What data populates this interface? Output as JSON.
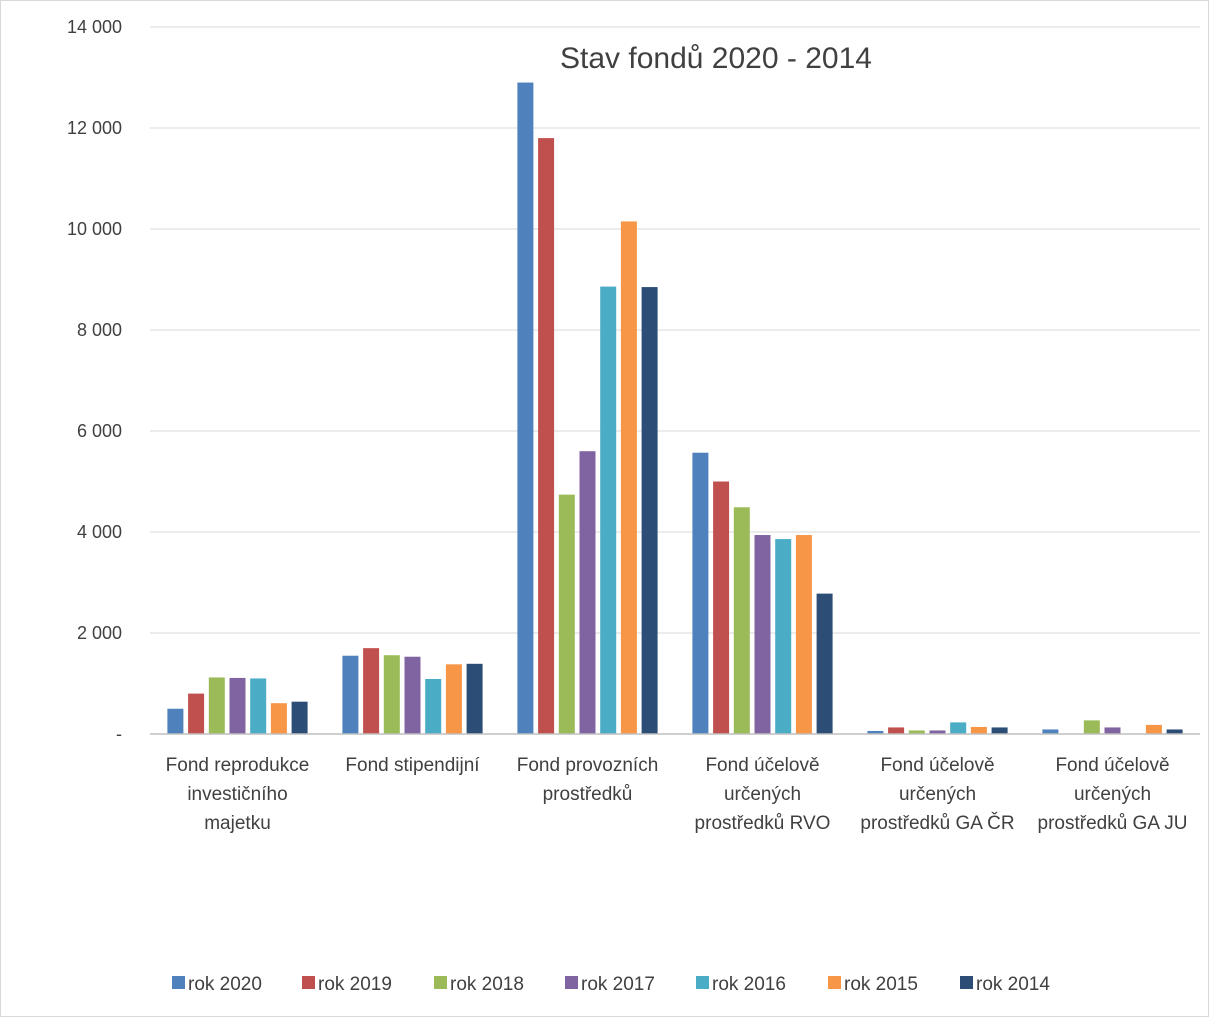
{
  "chart_data": {
    "type": "bar",
    "title": "Stav fondů 2020 - 2014",
    "xlabel": "",
    "ylabel": "",
    "ylim": [
      0,
      14000
    ],
    "y_ticks": [
      0,
      2000,
      4000,
      6000,
      8000,
      10000,
      12000,
      14000
    ],
    "y_tick_labels": [
      "-",
      "2 000",
      "4 000",
      "6 000",
      "8 000",
      "10 000",
      "12 000",
      "14 000"
    ],
    "grid": true,
    "legend_position": "bottom",
    "categories": [
      [
        "Fond reprodukce",
        "investičního",
        "majetku"
      ],
      [
        "Fond stipendijní"
      ],
      [
        "Fond provozních",
        "prostředků"
      ],
      [
        "Fond účelově",
        "určených",
        "prostředků RVO"
      ],
      [
        "Fond účelově",
        "určených",
        "prostředků GA ČR"
      ],
      [
        "Fond účelově",
        "určených",
        "prostředků GA JU"
      ]
    ],
    "series": [
      {
        "name": "rok 2020",
        "color": "#4f81bd",
        "values": [
          500,
          1550,
          12900,
          5570,
          60,
          90
        ]
      },
      {
        "name": "rok 2019",
        "color": "#c0504d",
        "values": [
          800,
          1700,
          11800,
          5000,
          130,
          0
        ]
      },
      {
        "name": "rok 2018",
        "color": "#9bbb59",
        "values": [
          1120,
          1560,
          4740,
          4490,
          70,
          270
        ]
      },
      {
        "name": "rok 2017",
        "color": "#8064a2",
        "values": [
          1110,
          1530,
          5600,
          3940,
          70,
          130
        ]
      },
      {
        "name": "rok 2016",
        "color": "#4bacc6",
        "values": [
          1100,
          1090,
          8860,
          3860,
          230,
          0
        ]
      },
      {
        "name": "rok 2015",
        "color": "#f79646",
        "values": [
          610,
          1380,
          10150,
          3940,
          140,
          180
        ]
      },
      {
        "name": "rok 2014",
        "color": "#2c4d75",
        "values": [
          640,
          1390,
          8850,
          2780,
          130,
          90
        ]
      }
    ]
  },
  "colors": {
    "gridline": "#d9d9d9",
    "axis": "#bfbfbf",
    "text": "#404040",
    "frame": "#d9d9d9"
  }
}
